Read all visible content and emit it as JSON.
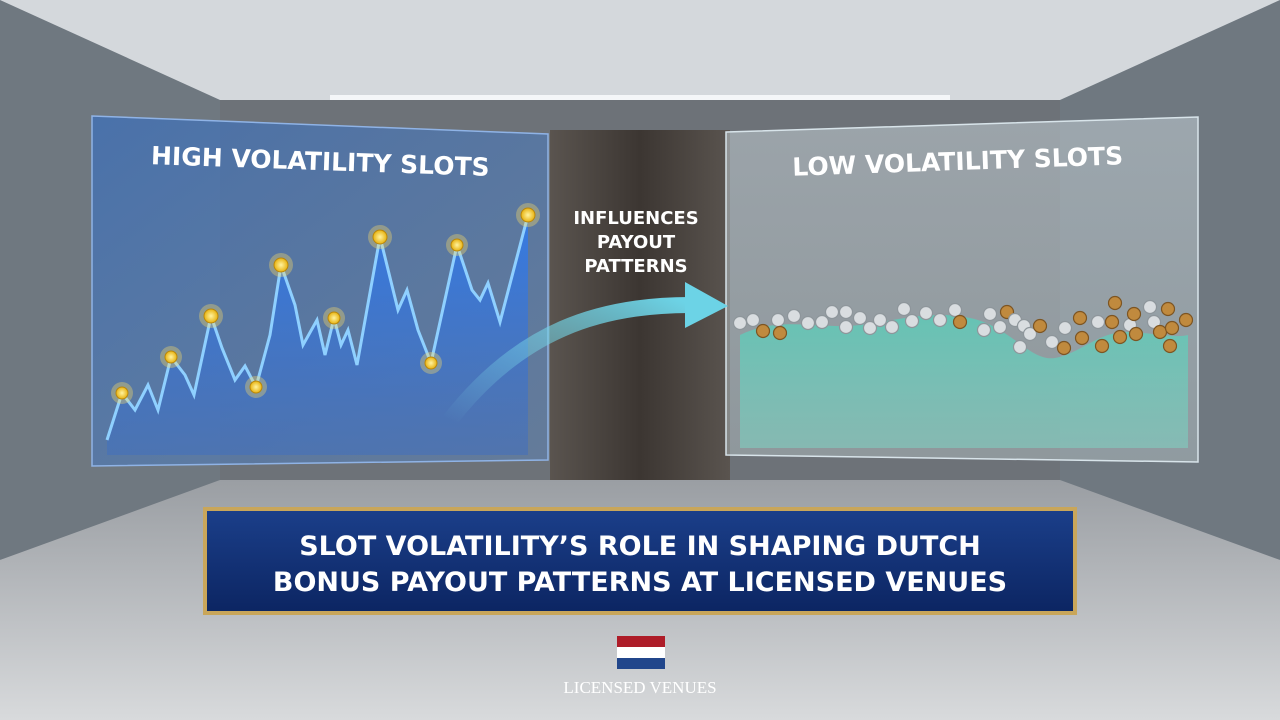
{
  "panels": [
    {
      "title": "HIGH VOLATILITY SLOTS"
    },
    {
      "title": "LOW VOLATILITY SLOTS"
    }
  ],
  "arrow_label": {
    "lines": [
      "INFLUENCES",
      "PAYOUT",
      "PATTERNS"
    ]
  },
  "banner": {
    "lines": [
      "SLOT VOLATILITY’S ROLE IN SHAPING DUTCH",
      "BONUS PAYOUT PATTERNS AT LICENSED VENUES"
    ]
  },
  "footer": {
    "caption": "LICENSED VENUES"
  }
}
